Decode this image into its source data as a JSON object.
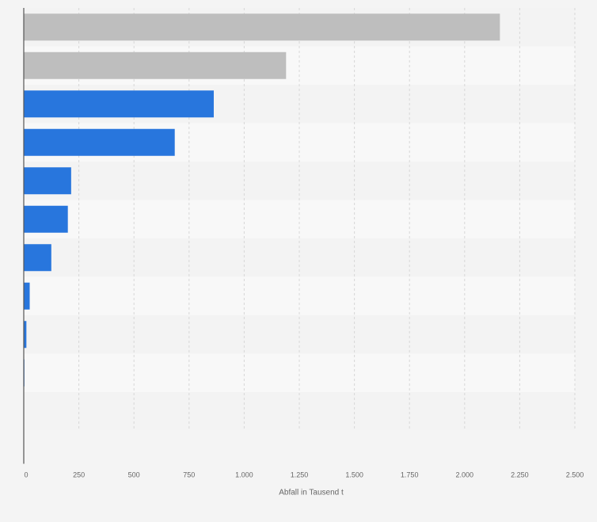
{
  "chart_data": {
    "type": "bar",
    "orientation": "horizontal",
    "title": "",
    "categories": [
      "",
      "",
      "",
      "",
      "",
      "",
      "",
      "",
      "",
      ""
    ],
    "values": [
      2160,
      1190,
      862,
      685,
      215,
      200,
      125,
      27,
      12,
      3
    ],
    "bar_colors": [
      "#bebebe",
      "#bebebe",
      "#2876dd",
      "#2876dd",
      "#2876dd",
      "#2876dd",
      "#2876dd",
      "#2876dd",
      "#2876dd",
      "#2876dd"
    ],
    "xlabel": "Abfall in Tausend t",
    "ylabel": "",
    "xlim": [
      0,
      2500
    ],
    "xticks": [
      0,
      250,
      500,
      750,
      1000,
      1250,
      1500,
      1750,
      2000,
      2250,
      2500
    ],
    "xtick_labels": [
      "0",
      "250",
      "500",
      "750",
      "1.000",
      "1.250",
      "1.500",
      "1.750",
      "2.000",
      "2.250",
      "2.500"
    ],
    "grid": "vertical dashed",
    "legend": "none"
  }
}
